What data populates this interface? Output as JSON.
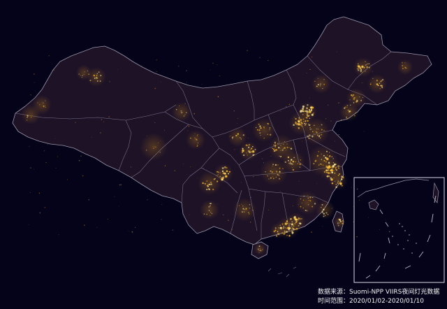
{
  "map": {
    "background_color": "#04031a",
    "land_color": "#1e1227",
    "border_color": "#9a96a8",
    "light_colors": [
      "#fff3b0",
      "#ffd24a",
      "#f5a623"
    ],
    "inset_panel": "south-china-sea-inset"
  },
  "caption": {
    "source_line": "数据来源：Suomi-NPP VIIRS夜间灯光数据",
    "time_line": "时间范围：2020/01/02-2020/01/10"
  }
}
